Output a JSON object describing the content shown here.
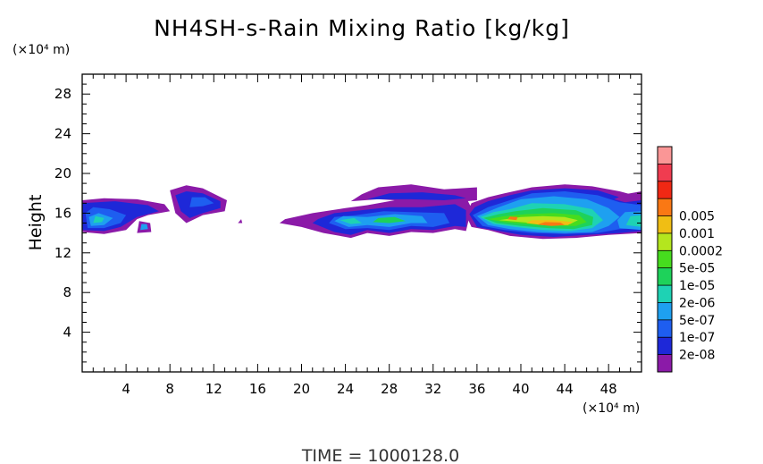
{
  "chart_data": {
    "type": "heatmap",
    "title": "NH4SH-s-Rain Mixing Ratio [kg/kg]",
    "ylabel": "Height",
    "y_unit": "(×10⁴ m)",
    "x_unit": "(×10⁴ m)",
    "footer": "TIME  =  1000128.0",
    "xlim": [
      0,
      51
    ],
    "ylim": [
      0,
      30
    ],
    "x_ticks": [
      4,
      8,
      12,
      16,
      20,
      24,
      28,
      32,
      36,
      40,
      44,
      48
    ],
    "y_ticks": [
      4,
      8,
      12,
      16,
      20,
      24,
      28
    ],
    "x_tick_labels": [
      "4",
      "8",
      "12",
      "16",
      "20",
      "24",
      "28",
      "32",
      "36",
      "40",
      "44",
      "48"
    ],
    "y_tick_labels": [
      "4",
      "8",
      "12",
      "16",
      "20",
      "24",
      "28"
    ],
    "colorbar": {
      "colors": [
        "#8b1aa8",
        "#1e28d8",
        "#1e5ef0",
        "#1ea0f0",
        "#1ed2b4",
        "#1ed25a",
        "#46dc1e",
        "#b4e61e",
        "#f0be14",
        "#fa7814",
        "#f02814",
        "#f03c50",
        "#fa9696"
      ],
      "labels": [
        "2e-08",
        "1e-07",
        "5e-07",
        "2e-06",
        "1e-05",
        "5e-05",
        "0.0002",
        "0.001",
        "0.005"
      ]
    },
    "regions": [
      {
        "level": 0,
        "pts": [
          [
            0,
            14.1
          ],
          [
            2,
            13.9
          ],
          [
            4,
            14.3
          ],
          [
            5,
            15.4
          ],
          [
            6,
            15.8
          ],
          [
            8,
            16.2
          ],
          [
            7.5,
            16.9
          ],
          [
            5,
            17.4
          ],
          [
            2,
            17.5
          ],
          [
            0,
            17.3
          ]
        ]
      },
      {
        "level": 1,
        "pts": [
          [
            0,
            14.3
          ],
          [
            2,
            14.2
          ],
          [
            3.5,
            14.6
          ],
          [
            5,
            15.6
          ],
          [
            7,
            16.2
          ],
          [
            6,
            16.8
          ],
          [
            3,
            17.2
          ],
          [
            0,
            17.0
          ]
        ]
      },
      {
        "level": 2,
        "pts": [
          [
            0.5,
            14.5
          ],
          [
            2,
            14.5
          ],
          [
            3.5,
            15.0
          ],
          [
            4,
            15.8
          ],
          [
            2.5,
            16.4
          ],
          [
            1,
            16.6
          ],
          [
            0.3,
            16.0
          ]
        ]
      },
      {
        "level": 3,
        "pts": [
          [
            0.8,
            14.7
          ],
          [
            2,
            14.8
          ],
          [
            2.8,
            15.5
          ],
          [
            1.5,
            16.0
          ],
          [
            0.6,
            15.6
          ]
        ]
      },
      {
        "level": 4,
        "pts": [
          [
            1,
            15.0
          ],
          [
            1.8,
            15.1
          ],
          [
            2,
            15.5
          ],
          [
            1.2,
            15.7
          ]
        ]
      },
      {
        "level": 0,
        "pts": [
          [
            5,
            14.0
          ],
          [
            6.3,
            14.1
          ],
          [
            6.2,
            15.0
          ],
          [
            5.2,
            15.2
          ]
        ]
      },
      {
        "level": 3,
        "pts": [
          [
            5.3,
            14.3
          ],
          [
            6.0,
            14.4
          ],
          [
            5.9,
            14.9
          ],
          [
            5.4,
            14.9
          ]
        ]
      },
      {
        "level": 0,
        "pts": [
          [
            8.5,
            16.0
          ],
          [
            9.5,
            15.0
          ],
          [
            11,
            15.8
          ],
          [
            13,
            16.2
          ],
          [
            13.2,
            17.3
          ],
          [
            11,
            18.5
          ],
          [
            9.5,
            18.8
          ],
          [
            8,
            18.3
          ]
        ]
      },
      {
        "level": 1,
        "pts": [
          [
            9,
            16.2
          ],
          [
            9.8,
            15.5
          ],
          [
            11,
            16.0
          ],
          [
            12.6,
            16.5
          ],
          [
            12.6,
            17.2
          ],
          [
            11,
            18.0
          ],
          [
            9.5,
            18.2
          ],
          [
            8.5,
            17.8
          ]
        ]
      },
      {
        "level": 2,
        "pts": [
          [
            9.8,
            16.6
          ],
          [
            11,
            16.7
          ],
          [
            12,
            17.0
          ],
          [
            11.2,
            17.6
          ],
          [
            10,
            17.6
          ]
        ]
      },
      {
        "level": 0,
        "pts": [
          [
            14.2,
            15.0
          ],
          [
            14.6,
            15.0
          ],
          [
            14.5,
            15.4
          ]
        ]
      },
      {
        "level": 0,
        "pts": [
          [
            18,
            15.0
          ],
          [
            20,
            14.6
          ],
          [
            22,
            14.0
          ],
          [
            24.5,
            13.5
          ],
          [
            26,
            14.0
          ],
          [
            28,
            13.7
          ],
          [
            30,
            14.1
          ],
          [
            32,
            14.0
          ],
          [
            34,
            14.4
          ],
          [
            35,
            14.2
          ],
          [
            35.5,
            16.5
          ],
          [
            35,
            17.6
          ],
          [
            32,
            17.2
          ],
          [
            29,
            17.4
          ],
          [
            26,
            16.8
          ],
          [
            24,
            16.5
          ],
          [
            21,
            16.0
          ],
          [
            18.5,
            15.4
          ]
        ]
      },
      {
        "level": 1,
        "pts": [
          [
            21,
            15.0
          ],
          [
            23,
            14.1
          ],
          [
            24.5,
            13.8
          ],
          [
            26,
            14.3
          ],
          [
            28,
            14.0
          ],
          [
            30,
            14.4
          ],
          [
            32,
            14.3
          ],
          [
            34,
            14.7
          ],
          [
            35,
            14.6
          ],
          [
            35,
            16.3
          ],
          [
            34,
            16.9
          ],
          [
            31,
            16.6
          ],
          [
            28,
            16.6
          ],
          [
            25.5,
            16.3
          ],
          [
            23,
            16.0
          ],
          [
            21.5,
            15.4
          ]
        ]
      },
      {
        "level": 2,
        "pts": [
          [
            22.5,
            15.0
          ],
          [
            24,
            14.4
          ],
          [
            26,
            14.5
          ],
          [
            28,
            14.3
          ],
          [
            30,
            14.7
          ],
          [
            32,
            14.6
          ],
          [
            33.5,
            15.0
          ],
          [
            33,
            16.0
          ],
          [
            30,
            16.1
          ],
          [
            27.5,
            16.2
          ],
          [
            25,
            15.8
          ],
          [
            23,
            15.6
          ]
        ]
      },
      {
        "level": 3,
        "pts": [
          [
            23,
            15.2
          ],
          [
            24.3,
            14.6
          ],
          [
            26,
            14.8
          ],
          [
            28,
            14.6
          ],
          [
            30,
            15.0
          ],
          [
            31.5,
            15.0
          ],
          [
            31,
            15.7
          ],
          [
            28.5,
            15.9
          ],
          [
            26,
            15.6
          ],
          [
            23.8,
            15.7
          ]
        ]
      },
      {
        "level": 4,
        "pts": [
          [
            23.5,
            15.3
          ],
          [
            24.5,
            14.9
          ],
          [
            25.5,
            15.0
          ],
          [
            24.8,
            15.5
          ]
        ]
      },
      {
        "level": 5,
        "pts": [
          [
            26.5,
            15.1
          ],
          [
            28,
            15.0
          ],
          [
            29.5,
            15.2
          ],
          [
            28.5,
            15.6
          ],
          [
            27,
            15.5
          ]
        ]
      },
      {
        "level": 0,
        "pts": [
          [
            24.5,
            17.2
          ],
          [
            25.5,
            17.9
          ],
          [
            27,
            18.6
          ],
          [
            30,
            18.9
          ],
          [
            33,
            18.4
          ],
          [
            36,
            18.6
          ],
          [
            36,
            17.3
          ],
          [
            33,
            17.0
          ],
          [
            30,
            17.2
          ],
          [
            27,
            17.4
          ]
        ]
      },
      {
        "level": 1,
        "pts": [
          [
            26,
            17.4
          ],
          [
            28,
            18.0
          ],
          [
            31,
            18.1
          ],
          [
            34,
            17.8
          ],
          [
            35,
            17.5
          ],
          [
            33,
            17.3
          ],
          [
            30,
            17.4
          ]
        ]
      },
      {
        "level": 0,
        "pts": [
          [
            35,
            15.8
          ],
          [
            35.5,
            14.6
          ],
          [
            37,
            14.3
          ],
          [
            39,
            13.7
          ],
          [
            42,
            13.4
          ],
          [
            45,
            13.5
          ],
          [
            48,
            13.8
          ],
          [
            51,
            14.0
          ],
          [
            51,
            17.6
          ],
          [
            49,
            18.2
          ],
          [
            46.5,
            18.7
          ],
          [
            44,
            18.9
          ],
          [
            41,
            18.6
          ],
          [
            38.5,
            18.0
          ],
          [
            37,
            17.6
          ],
          [
            35.5,
            17.0
          ]
        ]
      },
      {
        "level": 1,
        "pts": [
          [
            35.3,
            15.9
          ],
          [
            36,
            14.6
          ],
          [
            38,
            14.2
          ],
          [
            40,
            13.8
          ],
          [
            43,
            13.6
          ],
          [
            46,
            13.8
          ],
          [
            49,
            14.0
          ],
          [
            51,
            14.2
          ],
          [
            51,
            17.3
          ],
          [
            49,
            17.6
          ],
          [
            47,
            18.3
          ],
          [
            44,
            18.5
          ],
          [
            41,
            18.3
          ],
          [
            39,
            17.8
          ],
          [
            37,
            17.2
          ],
          [
            35.8,
            16.6
          ]
        ]
      },
      {
        "level": 2,
        "pts": [
          [
            35.6,
            15.8
          ],
          [
            36.5,
            14.7
          ],
          [
            38.5,
            14.3
          ],
          [
            41,
            14.0
          ],
          [
            44,
            13.9
          ],
          [
            47,
            14.0
          ],
          [
            49,
            14.4
          ],
          [
            51,
            14.5
          ],
          [
            51,
            16.8
          ],
          [
            49,
            17.1
          ],
          [
            47,
            17.8
          ],
          [
            44,
            18.2
          ],
          [
            41,
            18.0
          ],
          [
            39,
            17.3
          ],
          [
            37,
            16.6
          ]
        ]
      },
      {
        "level": 3,
        "pts": [
          [
            36,
            15.7
          ],
          [
            37,
            14.8
          ],
          [
            39,
            14.4
          ],
          [
            41.5,
            14.1
          ],
          [
            44,
            14.0
          ],
          [
            46.5,
            14.1
          ],
          [
            48,
            14.7
          ],
          [
            49,
            15.6
          ],
          [
            48,
            16.5
          ],
          [
            46,
            17.4
          ],
          [
            43,
            17.7
          ],
          [
            40,
            17.4
          ],
          [
            38,
            16.6
          ]
        ]
      },
      {
        "level": 4,
        "pts": [
          [
            36.3,
            15.6
          ],
          [
            37.5,
            14.9
          ],
          [
            39.5,
            14.6
          ],
          [
            42,
            14.3
          ],
          [
            44.5,
            14.2
          ],
          [
            46.5,
            14.5
          ],
          [
            47.5,
            15.3
          ],
          [
            46.5,
            16.4
          ],
          [
            44,
            16.9
          ],
          [
            41,
            17.0
          ],
          [
            39,
            16.4
          ],
          [
            37.5,
            16.1
          ]
        ]
      },
      {
        "level": 5,
        "pts": [
          [
            36.6,
            15.5
          ],
          [
            37.8,
            15.0
          ],
          [
            40,
            14.7
          ],
          [
            42.5,
            14.5
          ],
          [
            44.8,
            14.4
          ],
          [
            46.5,
            14.8
          ],
          [
            46.6,
            15.6
          ],
          [
            45,
            16.3
          ],
          [
            42,
            16.5
          ],
          [
            39.5,
            16.2
          ],
          [
            38,
            15.9
          ]
        ]
      },
      {
        "level": 6,
        "pts": [
          [
            37,
            15.4
          ],
          [
            38.5,
            15.1
          ],
          [
            40.5,
            14.9
          ],
          [
            43,
            14.7
          ],
          [
            45,
            14.7
          ],
          [
            46,
            15.1
          ],
          [
            45.3,
            15.8
          ],
          [
            43,
            16.0
          ],
          [
            40.5,
            15.9
          ],
          [
            38.5,
            15.7
          ]
        ]
      },
      {
        "level": 7,
        "pts": [
          [
            38,
            15.3
          ],
          [
            40,
            15.1
          ],
          [
            42,
            14.9
          ],
          [
            44.5,
            14.9
          ],
          [
            45.2,
            15.3
          ],
          [
            44,
            15.6
          ],
          [
            42,
            15.7
          ],
          [
            40,
            15.6
          ]
        ]
      },
      {
        "level": 8,
        "pts": [
          [
            40.5,
            15.0
          ],
          [
            42,
            14.8
          ],
          [
            44.3,
            14.8
          ],
          [
            44.7,
            15.1
          ],
          [
            43,
            15.3
          ],
          [
            41,
            15.3
          ]
        ]
      },
      {
        "level": 9,
        "pts": [
          [
            41.5,
            14.85
          ],
          [
            42.8,
            14.7
          ],
          [
            44,
            14.8
          ],
          [
            43.6,
            15.05
          ],
          [
            42.2,
            15.1
          ]
        ]
      },
      {
        "level": 9,
        "pts": [
          [
            38.8,
            15.4
          ],
          [
            39.6,
            15.3
          ],
          [
            39.7,
            15.6
          ],
          [
            39,
            15.65
          ]
        ]
      },
      {
        "level": 3,
        "pts": [
          [
            49,
            14.5
          ],
          [
            51,
            14.3
          ],
          [
            51,
            16.2
          ],
          [
            49.5,
            16.1
          ],
          [
            48.8,
            15.3
          ]
        ]
      },
      {
        "level": 4,
        "pts": [
          [
            49.6,
            14.8
          ],
          [
            51,
            14.6
          ],
          [
            51,
            15.8
          ],
          [
            50,
            15.7
          ]
        ]
      },
      {
        "level": 0,
        "pts": [
          [
            48.5,
            17.4
          ],
          [
            49.5,
            17.9
          ],
          [
            51,
            18.2
          ],
          [
            51,
            17.3
          ],
          [
            49.5,
            17.1
          ]
        ]
      }
    ]
  }
}
